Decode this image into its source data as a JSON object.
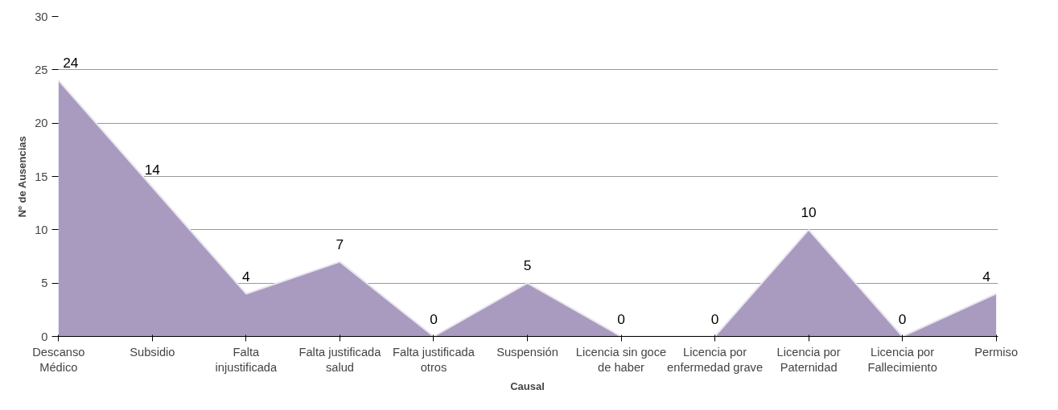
{
  "chart_data": {
    "type": "area",
    "xlabel": "Causal",
    "ylabel": "Nº de Ausencias",
    "categories": [
      "Descanso Médico",
      "Subsidio",
      "Falta injustificada",
      "Falta justificada salud",
      "Falta justificada otros",
      "Suspensión",
      "Licencia sin goce de haber",
      "Licencia por enfermedad grave",
      "Licencia por Paternidad",
      "Licencia por Fallecimiento",
      "Permiso"
    ],
    "series": [
      {
        "color": "#a99bbf",
        "values": [
          24,
          14,
          4,
          7,
          0,
          5,
          0,
          0,
          10,
          0,
          4
        ]
      }
    ],
    "ylim": [
      0,
      30
    ],
    "yticks": [
      0,
      5,
      10,
      15,
      20,
      25,
      30
    ],
    "grid": "y",
    "data_labels": true
  }
}
